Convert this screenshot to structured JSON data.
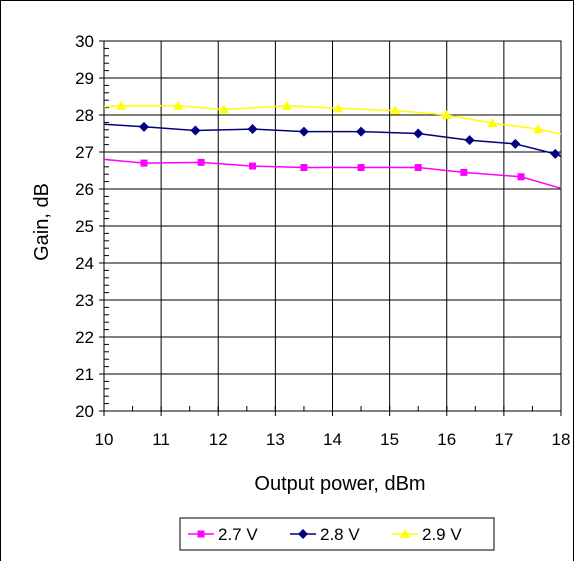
{
  "chart_data": {
    "type": "line",
    "title": "",
    "xlabel": "Output power, dBm",
    "ylabel": "Gain, dB",
    "xlim": [
      10,
      18
    ],
    "ylim": [
      20,
      30
    ],
    "x_ticks": [
      "10",
      "11",
      "12",
      "13",
      "14",
      "15",
      "16",
      "17",
      "18"
    ],
    "y_ticks": [
      "20",
      "21",
      "22",
      "23",
      "24",
      "25",
      "26",
      "27",
      "28",
      "29",
      "30"
    ],
    "grid": true,
    "legend_position": "bottom",
    "series": [
      {
        "name": "2.7 V",
        "color": "#FF00FF",
        "marker": "square",
        "points": [
          [
            10.0,
            26.8
          ],
          [
            10.7,
            26.7
          ],
          [
            11.7,
            26.72
          ],
          [
            12.6,
            26.62
          ],
          [
            13.5,
            26.58
          ],
          [
            14.5,
            26.58
          ],
          [
            15.5,
            26.58
          ],
          [
            16.3,
            26.45
          ],
          [
            17.3,
            26.33
          ],
          [
            18.0,
            26.02
          ]
        ]
      },
      {
        "name": "2.8 V",
        "color": "#000080",
        "marker": "diamond",
        "points": [
          [
            10.0,
            27.75
          ],
          [
            10.7,
            27.68
          ],
          [
            11.6,
            27.58
          ],
          [
            12.6,
            27.62
          ],
          [
            13.5,
            27.55
          ],
          [
            14.5,
            27.55
          ],
          [
            15.5,
            27.5
          ],
          [
            16.4,
            27.32
          ],
          [
            17.2,
            27.22
          ],
          [
            17.9,
            26.95
          ],
          [
            18.0,
            26.88
          ]
        ]
      },
      {
        "name": "2.9 V",
        "color": "#FFFF00",
        "marker": "triangle",
        "points": [
          [
            10.0,
            28.22
          ],
          [
            10.3,
            28.25
          ],
          [
            11.3,
            28.25
          ],
          [
            12.1,
            28.15
          ],
          [
            13.2,
            28.25
          ],
          [
            14.1,
            28.18
          ],
          [
            15.1,
            28.12
          ],
          [
            16.0,
            28.0
          ],
          [
            16.8,
            27.78
          ],
          [
            17.6,
            27.62
          ],
          [
            18.0,
            27.48
          ]
        ]
      }
    ]
  }
}
